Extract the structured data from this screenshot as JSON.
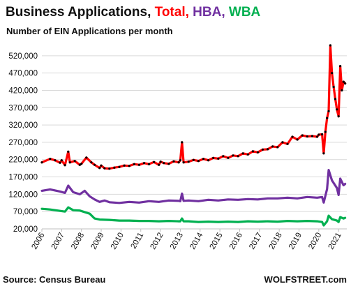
{
  "header": {
    "title_main": "Business Applications,",
    "title_total": "Total,",
    "title_hba": "HBA,",
    "title_wba": "WBA",
    "subtitle": "Number of EIN Applications per month"
  },
  "footer": {
    "source": "Source: Census Bureau",
    "brand": "WOLFSTREET.com"
  },
  "colors": {
    "total": "#ff0000",
    "hba": "#7030a0",
    "wba": "#00b050",
    "markers": "#000000",
    "grid": "#d9d9d9",
    "axis": "#bfbfbf"
  },
  "chart_data": {
    "type": "line",
    "title": "Business Applications, Total, HBA, WBA",
    "subtitle": "Number of EIN Applications per month",
    "xlabel": "",
    "ylabel": "",
    "ylim": [
      20000,
      560000
    ],
    "xlim": [
      "2006-01",
      "2021-06"
    ],
    "y_ticks": [
      "520,000",
      "470,000",
      "420,000",
      "370,000",
      "320,000",
      "270,000",
      "220,000",
      "170,000",
      "120,000",
      "70,000",
      "20,000"
    ],
    "y_tick_values": [
      520000,
      470000,
      420000,
      370000,
      320000,
      270000,
      220000,
      170000,
      120000,
      70000,
      20000
    ],
    "x_ticks": [
      "2006",
      "2007",
      "2008",
      "2009",
      "2010",
      "2011",
      "2012",
      "2013",
      "2014",
      "2015",
      "2016",
      "2017",
      "2018",
      "2019",
      "2020",
      "2021"
    ],
    "grid": "horizontal",
    "series": [
      {
        "name": "Total",
        "color": "#ff0000",
        "markers": true,
        "x": [
          "2006-01",
          "2006-06",
          "2006-09",
          "2006-12",
          "2007-01",
          "2007-03",
          "2007-05",
          "2007-06",
          "2007-09",
          "2007-12",
          "2008-01",
          "2008-04",
          "2008-07",
          "2008-09",
          "2008-12",
          "2009-01",
          "2009-03",
          "2009-06",
          "2009-09",
          "2009-12",
          "2010-03",
          "2010-06",
          "2010-09",
          "2010-12",
          "2011-03",
          "2011-06",
          "2011-09",
          "2011-12",
          "2012-01",
          "2012-03",
          "2012-06",
          "2012-09",
          "2012-12",
          "2013-01",
          "2013-02",
          "2013-03",
          "2013-06",
          "2013-09",
          "2013-12",
          "2014-03",
          "2014-06",
          "2014-09",
          "2014-12",
          "2015-03",
          "2015-06",
          "2015-09",
          "2015-12",
          "2016-03",
          "2016-06",
          "2016-09",
          "2016-12",
          "2017-03",
          "2017-06",
          "2017-09",
          "2017-12",
          "2018-03",
          "2018-06",
          "2018-09",
          "2018-12",
          "2019-03",
          "2019-06",
          "2019-09",
          "2019-12",
          "2020-01",
          "2020-03",
          "2020-04",
          "2020-05",
          "2020-06",
          "2020-07",
          "2020-08",
          "2020-09",
          "2020-10",
          "2020-11",
          "2020-12",
          "2021-01",
          "2021-02",
          "2021-03",
          "2021-04",
          "2021-05"
        ],
        "values": [
          212000,
          222000,
          218000,
          211000,
          218000,
          204000,
          243000,
          212000,
          216000,
          205000,
          208000,
          226000,
          212000,
          205000,
          196000,
          203000,
          195000,
          194000,
          197000,
          199000,
          203000,
          202000,
          207000,
          205000,
          210000,
          207000,
          213000,
          205000,
          214000,
          210000,
          208000,
          215000,
          212000,
          218000,
          270000,
          212000,
          214000,
          219000,
          216000,
          222000,
          218000,
          225000,
          223000,
          230000,
          225000,
          232000,
          230000,
          238000,
          235000,
          244000,
          241000,
          249000,
          250000,
          258000,
          256000,
          270000,
          265000,
          286000,
          278000,
          290000,
          287000,
          288000,
          286000,
          292000,
          293000,
          238000,
          300000,
          340000,
          360000,
          550000,
          470000,
          430000,
          395000,
          365000,
          345000,
          490000,
          420000,
          445000,
          440000
        ]
      },
      {
        "name": "HBA",
        "color": "#7030a0",
        "markers": false,
        "x": [
          "2006-01",
          "2006-06",
          "2006-12",
          "2007-03",
          "2007-05",
          "2007-08",
          "2007-12",
          "2008-03",
          "2008-06",
          "2008-09",
          "2008-12",
          "2009-03",
          "2009-06",
          "2009-12",
          "2010-06",
          "2010-12",
          "2011-06",
          "2011-12",
          "2012-06",
          "2012-12",
          "2013-01",
          "2013-02",
          "2013-03",
          "2013-06",
          "2013-12",
          "2014-06",
          "2014-12",
          "2015-06",
          "2015-12",
          "2016-06",
          "2016-12",
          "2017-06",
          "2017-12",
          "2018-06",
          "2018-12",
          "2019-06",
          "2019-12",
          "2020-03",
          "2020-04",
          "2020-06",
          "2020-07",
          "2020-09",
          "2020-12",
          "2021-01",
          "2021-02",
          "2021-04",
          "2021-05"
        ],
        "values": [
          130000,
          134000,
          128000,
          124000,
          145000,
          126000,
          120000,
          130000,
          114000,
          105000,
          98000,
          102000,
          97000,
          95000,
          98000,
          96000,
          100000,
          98000,
          102000,
          101000,
          100000,
          122000,
          101000,
          102000,
          100000,
          104000,
          102000,
          105000,
          104000,
          106000,
          105000,
          108000,
          108000,
          110000,
          108000,
          112000,
          110000,
          112000,
          96000,
          135000,
          190000,
          160000,
          138000,
          118000,
          165000,
          146000,
          150000
        ]
      },
      {
        "name": "WBA",
        "color": "#00b050",
        "markers": false,
        "x": [
          "2006-01",
          "2006-06",
          "2006-12",
          "2007-03",
          "2007-05",
          "2007-08",
          "2007-12",
          "2008-06",
          "2008-09",
          "2008-12",
          "2009-06",
          "2009-12",
          "2010-06",
          "2010-12",
          "2011-06",
          "2011-12",
          "2012-06",
          "2012-12",
          "2013-01",
          "2013-02",
          "2013-03",
          "2013-06",
          "2013-12",
          "2014-06",
          "2014-12",
          "2015-06",
          "2015-12",
          "2016-06",
          "2016-12",
          "2017-06",
          "2017-12",
          "2018-06",
          "2018-12",
          "2019-06",
          "2019-12",
          "2020-03",
          "2020-04",
          "2020-06",
          "2020-07",
          "2020-09",
          "2020-12",
          "2021-01",
          "2021-02",
          "2021-04",
          "2021-05"
        ],
        "values": [
          78000,
          76000,
          72000,
          70000,
          82000,
          74000,
          73000,
          64000,
          50000,
          47000,
          46000,
          44000,
          44000,
          43000,
          43000,
          42000,
          43000,
          42000,
          42000,
          50000,
          42000,
          42000,
          40000,
          41000,
          40000,
          41000,
          40000,
          42000,
          41000,
          42000,
          41000,
          43000,
          42000,
          43000,
          42000,
          40000,
          30000,
          42000,
          58000,
          48000,
          44000,
          40000,
          54000,
          50000,
          52000
        ]
      }
    ]
  }
}
